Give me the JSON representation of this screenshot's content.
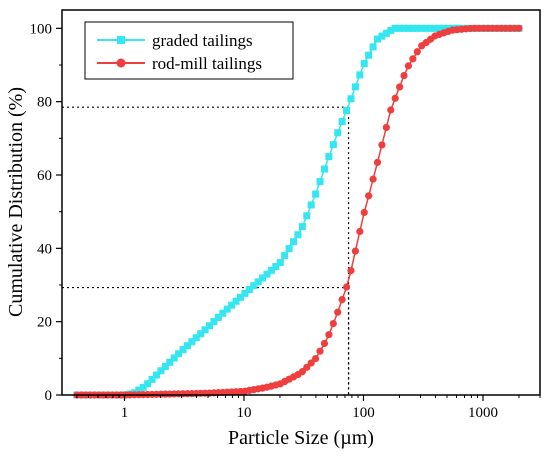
{
  "chart_data": {
    "type": "line",
    "xscale": "log",
    "xlim": [
      0.3,
      3000
    ],
    "ylim": [
      0,
      105
    ],
    "xlabel": "Particle Size (µm)",
    "ylabel": "Cumulative Distribution (%)",
    "xticks": [
      1,
      10,
      100,
      1000
    ],
    "xtick_labels": [
      "1",
      "10",
      "100",
      "1000"
    ],
    "yticks": [
      0,
      20,
      40,
      60,
      80,
      100
    ],
    "ytick_labels": [
      "0",
      "20",
      "40",
      "60",
      "80",
      "100"
    ],
    "grid": false,
    "legend_position": "top-left",
    "series": [
      {
        "name": "graded tailings",
        "color": "#33e6f0",
        "marker": "square",
        "points": [
          [
            0.4,
            0
          ],
          [
            1.0,
            0
          ],
          [
            1.2,
            0.5
          ],
          [
            1.5,
            2.5
          ],
          [
            2,
            6.5
          ],
          [
            3,
            12
          ],
          [
            5,
            18.5
          ],
          [
            7,
            23
          ],
          [
            10,
            27.5
          ],
          [
            15,
            32.5
          ],
          [
            20,
            36
          ],
          [
            30,
            45
          ],
          [
            40,
            55
          ],
          [
            50,
            64
          ],
          [
            60,
            71
          ],
          [
            75,
            79
          ],
          [
            100,
            90
          ],
          [
            130,
            97
          ],
          [
            180,
            100
          ],
          [
            300,
            100
          ],
          [
            1000,
            100
          ],
          [
            2000,
            100
          ]
        ]
      },
      {
        "name": "rod-mill tailings",
        "color": "#ee3e3e",
        "marker": "circle",
        "points": [
          [
            0.4,
            0
          ],
          [
            1,
            0
          ],
          [
            2,
            0.2
          ],
          [
            5,
            0.5
          ],
          [
            10,
            1
          ],
          [
            15,
            2
          ],
          [
            20,
            3
          ],
          [
            30,
            6
          ],
          [
            40,
            10
          ],
          [
            50,
            15.5
          ],
          [
            60,
            22
          ],
          [
            75,
            31
          ],
          [
            100,
            49
          ],
          [
            130,
            63
          ],
          [
            170,
            78
          ],
          [
            230,
            89
          ],
          [
            300,
            95
          ],
          [
            400,
            98
          ],
          [
            550,
            99.5
          ],
          [
            800,
            100
          ],
          [
            1200,
            100
          ],
          [
            2000,
            100
          ]
        ]
      }
    ],
    "reference_lines": [
      {
        "x": 75,
        "y": 78.5
      },
      {
        "x": 75,
        "y": 29.3
      }
    ]
  }
}
